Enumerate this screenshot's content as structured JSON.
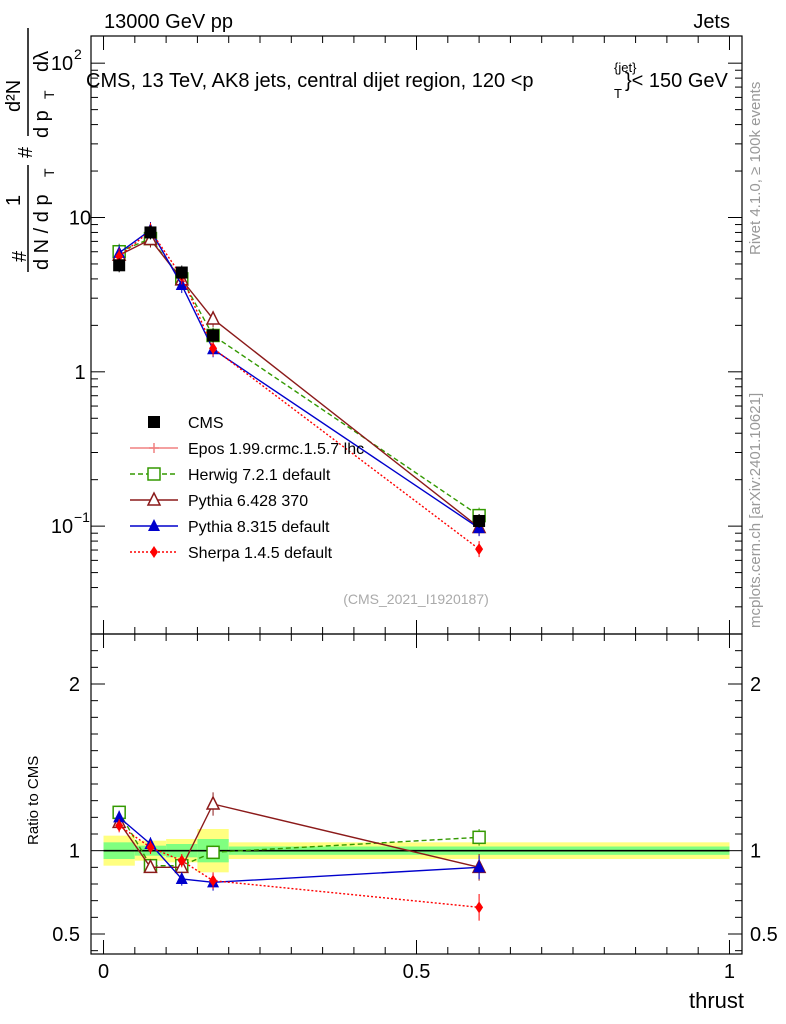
{
  "header": {
    "energy": "13000 GeV pp",
    "category": "Jets",
    "title_main": "CMS, 13 TeV, AK8 jets, central dijet region, 120 <p",
    "title_sub": "T",
    "title_sup": "{jet}",
    "title_end": "}< 150 GeV",
    "rivet": "Rivet 4.1.0, ≥ 100k events",
    "mcplots": "mcplots.cern.ch [arXiv:2401.10621]",
    "analysis_id": "(CMS_2021_I1920187)"
  },
  "yaxis": {
    "frac_num": "1",
    "frac_den": "d N / d p",
    "frac_den_sub": "T",
    "hash": "#",
    "d2n": "d²N",
    "dpt": "d p",
    "dpt_sub": "T",
    "dlambda": "dλ",
    "ratio_label": "Ratio to CMS"
  },
  "xaxis": {
    "label": "thrust"
  },
  "chart_data": {
    "type": "line",
    "main": {
      "yscale": "log",
      "ylim": [
        0.02,
        150
      ],
      "tick_labels": [
        {
          "value": 100,
          "label": "10",
          "sup": "2"
        },
        {
          "value": 10,
          "label": "10",
          "sup": ""
        },
        {
          "value": 1,
          "label": "1",
          "sup": ""
        },
        {
          "value": 0.1,
          "label": "10",
          "sup": "−1"
        }
      ]
    },
    "ratio": {
      "ylim": [
        0.38,
        2.3
      ],
      "ticks": [
        0.5,
        1,
        2
      ],
      "tick_labels": [
        "0.5",
        "1",
        "2"
      ],
      "band_edges": [
        0,
        0.05,
        0.1,
        0.15,
        0.2,
        1.0
      ],
      "band_inner": [
        0.05,
        0.03,
        0.04,
        0.07,
        0.025
      ],
      "band_outer": [
        0.09,
        0.06,
        0.07,
        0.13,
        0.05
      ]
    },
    "xlim": [
      -0.02,
      1.02
    ],
    "x_ticks": [
      0,
      0.5,
      1
    ],
    "x_tick_labels": [
      "0",
      "0.5",
      "1"
    ],
    "data": {
      "name": "CMS",
      "x": [
        0.025,
        0.075,
        0.125,
        0.175,
        0.6
      ],
      "y": [
        4.9,
        8.0,
        4.4,
        1.72,
        0.108
      ]
    },
    "series": [
      {
        "name": "Epos 1.99.crmc.1.5.7 lhc",
        "color": "#f08080",
        "marker": "cross",
        "dash": "",
        "x": [],
        "y": [],
        "ratio": [],
        "ratio_err": []
      },
      {
        "name": "Herwig 7.2.1 default",
        "color": "#339900",
        "marker": "open-square",
        "dash": "5,3",
        "x": [
          0.025,
          0.075,
          0.125,
          0.175,
          0.6
        ],
        "y": [
          6.0,
          7.3,
          4.0,
          1.72,
          0.117
        ],
        "ratio": [
          1.23,
          0.91,
          0.91,
          0.99,
          1.08
        ],
        "ratio_err": [
          0.04,
          0.03,
          0.03,
          0.04,
          0.05
        ]
      },
      {
        "name": "Pythia 6.428 370",
        "color": "#8b1a1a",
        "marker": "open-triangle",
        "dash": "",
        "x": [
          0.025,
          0.075,
          0.125,
          0.175,
          0.6
        ],
        "y": [
          5.7,
          7.2,
          3.95,
          2.2,
          0.098
        ],
        "ratio": [
          1.17,
          0.9,
          0.9,
          1.28,
          0.9
        ],
        "ratio_err": [
          0.04,
          0.03,
          0.03,
          0.07,
          0.08
        ]
      },
      {
        "name": "Pythia 8.315 default",
        "color": "#0000cc",
        "marker": "triangle",
        "dash": "",
        "x": [
          0.025,
          0.075,
          0.125,
          0.175,
          0.6
        ],
        "y": [
          5.9,
          8.3,
          3.65,
          1.4,
          0.097
        ],
        "ratio": [
          1.2,
          1.04,
          0.83,
          0.81,
          0.9
        ],
        "ratio_err": [
          0.04,
          0.04,
          0.04,
          0.05,
          0.07
        ]
      },
      {
        "name": "Sherpa 1.4.5 default",
        "color": "#ff0000",
        "marker": "diamond",
        "dash": "2,2",
        "x": [
          0.025,
          0.075,
          0.125,
          0.175,
          0.6
        ],
        "y": [
          5.6,
          8.2,
          4.15,
          1.42,
          0.071
        ],
        "ratio": [
          1.15,
          1.02,
          0.94,
          0.82,
          0.66
        ],
        "ratio_err": [
          0.04,
          0.04,
          0.04,
          0.05,
          0.08
        ]
      }
    ]
  }
}
